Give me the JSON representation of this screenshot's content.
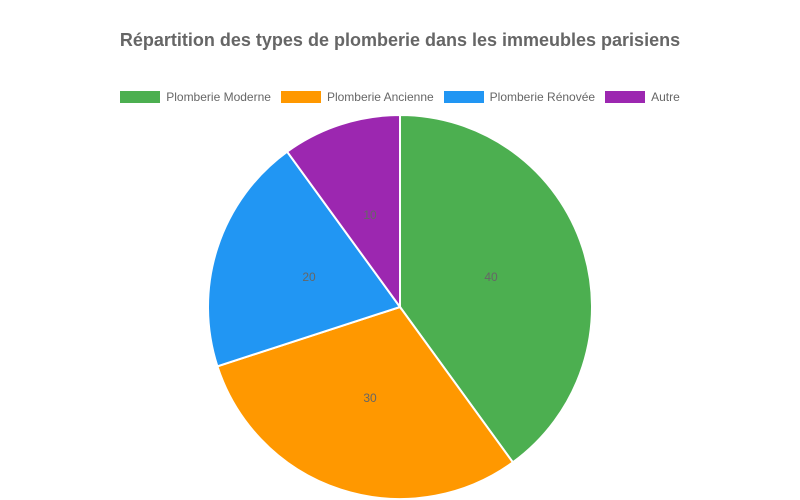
{
  "chart_data": {
    "type": "pie",
    "title": "Répartition des types de plomberie dans les immeubles parisiens",
    "categories": [
      "Plomberie Moderne",
      "Plomberie Ancienne",
      "Plomberie Rénovée",
      "Autre"
    ],
    "values": [
      40,
      30,
      20,
      10
    ],
    "colors": [
      "#4CAF50",
      "#FF9800",
      "#2196F3",
      "#9C27B0"
    ],
    "legend_position": "top",
    "data_labels": [
      "40",
      "30",
      "20",
      "10"
    ]
  }
}
